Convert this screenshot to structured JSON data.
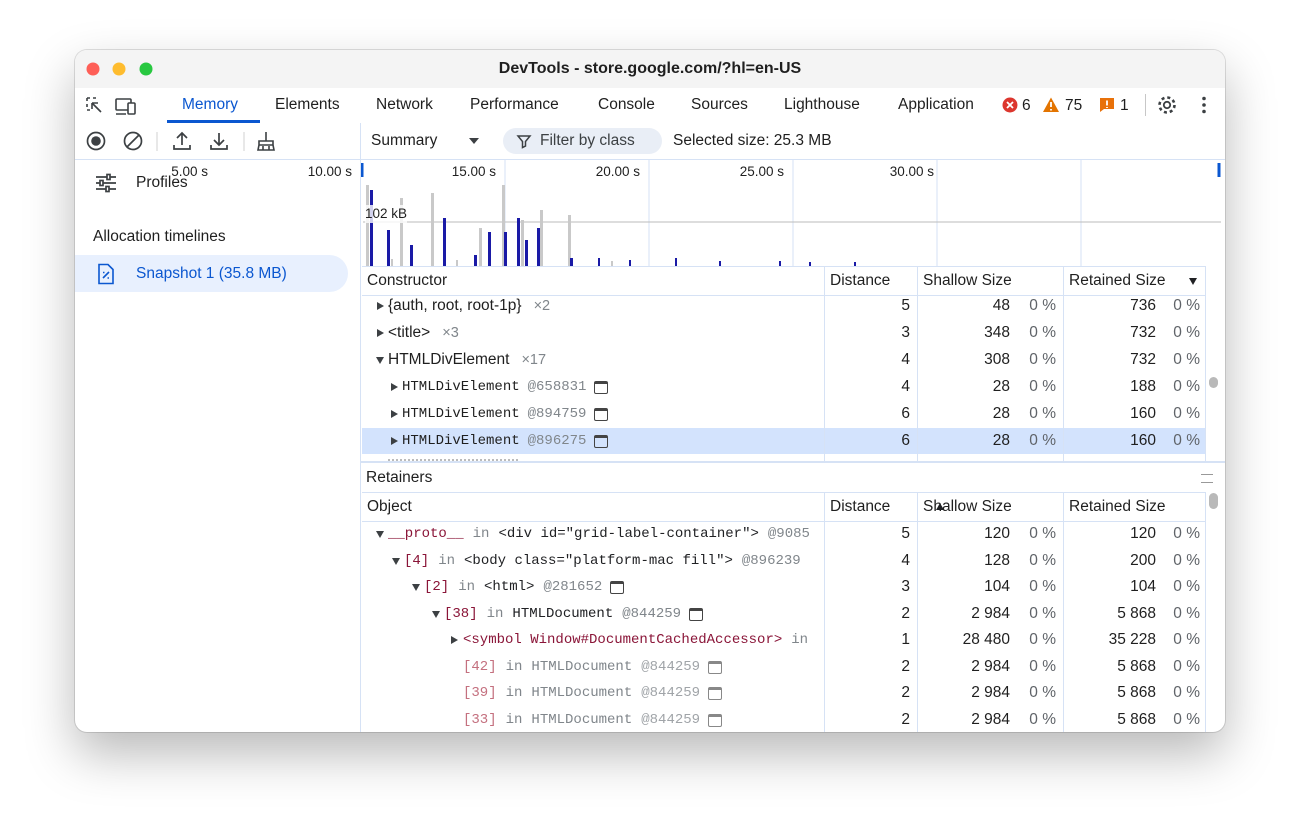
{
  "window": {
    "title": "DevTools - store.google.com/?hl=en-US"
  },
  "tabs": [
    "Memory",
    "Elements",
    "Network",
    "Performance",
    "Console",
    "Sources",
    "Lighthouse",
    "Application"
  ],
  "status": {
    "errors": 6,
    "warnings": 75,
    "issues": 1
  },
  "toolbar": {
    "view": "Summary",
    "filter": "Filter by class",
    "selected_size": "Selected size: 25.3 MB"
  },
  "sidebar": {
    "heading": "Profiles",
    "group": "Allocation timelines",
    "snapshot": "Snapshot 1 (35.8 MB)"
  },
  "timeline": {
    "ticks": [
      "5.00 s",
      "10.00 s",
      "15.00 s",
      "20.00 s",
      "25.00 s",
      "30.00 s"
    ],
    "scale_label": "102 kB"
  },
  "constructors": {
    "columns": [
      "Constructor",
      "Distance",
      "Shallow Size",
      "Retained Size"
    ],
    "rows": [
      {
        "name": "{auth, root, root-1p}",
        "count": "×2",
        "distance": 5,
        "shallow": 48,
        "shallow_pct": "0 %",
        "retained": 736,
        "retained_pct": "0 %"
      },
      {
        "name": "<title>",
        "count": "×3",
        "distance": 3,
        "shallow": 348,
        "shallow_pct": "0 %",
        "retained": 732,
        "retained_pct": "0 %"
      },
      {
        "name": "HTMLDivElement",
        "count": "×17",
        "distance": 4,
        "shallow": 308,
        "shallow_pct": "0 %",
        "retained": 732,
        "retained_pct": "0 %"
      },
      {
        "name": "HTMLDivElement",
        "id": "@658831",
        "distance": 4,
        "shallow": 28,
        "shallow_pct": "0 %",
        "retained": 188,
        "retained_pct": "0 %"
      },
      {
        "name": "HTMLDivElement",
        "id": "@894759",
        "distance": 6,
        "shallow": 28,
        "shallow_pct": "0 %",
        "retained": 160,
        "retained_pct": "0 %"
      },
      {
        "name": "HTMLDivElement",
        "id": "@896275",
        "distance": 6,
        "shallow": 28,
        "shallow_pct": "0 %",
        "retained": 160,
        "retained_pct": "0 %"
      }
    ]
  },
  "retainers": {
    "title": "Retainers",
    "columns": [
      "Object",
      "Distance",
      "Shallow Size",
      "Retained Size"
    ],
    "rows": [
      {
        "key": "__proto__",
        "in": "in",
        "object": "<div id=\"grid-label-container\">",
        "id": "@9085",
        "distance": 5,
        "shallow": 120,
        "shallow_pct": "0 %",
        "retained": 120,
        "retained_pct": "0 %"
      },
      {
        "key": "[4]",
        "in": "in",
        "object": "<body class=\"platform-mac fill\">",
        "id": "@896239",
        "distance": 4,
        "shallow": 128,
        "shallow_pct": "0 %",
        "retained": 200,
        "retained_pct": "0 %"
      },
      {
        "key": "[2]",
        "in": "in",
        "object": "<html>",
        "id": "@281652",
        "distance": 3,
        "shallow": 104,
        "shallow_pct": "0 %",
        "retained": 104,
        "retained_pct": "0 %"
      },
      {
        "key": "[38]",
        "in": "in",
        "object": "HTMLDocument",
        "id": "@844259",
        "distance": 2,
        "shallow": "2 984",
        "shallow_pct": "0 %",
        "retained": "5 868",
        "retained_pct": "0 %"
      },
      {
        "key": "<symbol Window#DocumentCachedAccessor>",
        "in": "in",
        "distance": 1,
        "shallow": "28 480",
        "shallow_pct": "0 %",
        "retained": "35 228",
        "retained_pct": "0 %"
      },
      {
        "key": "[42]",
        "in": "in",
        "object": "HTMLDocument",
        "id": "@844259",
        "distance": 2,
        "shallow": "2 984",
        "shallow_pct": "0 %",
        "retained": "5 868",
        "retained_pct": "0 %"
      },
      {
        "key": "[39]",
        "in": "in",
        "object": "HTMLDocument",
        "id": "@844259",
        "distance": 2,
        "shallow": "2 984",
        "shallow_pct": "0 %",
        "retained": "5 868",
        "retained_pct": "0 %"
      },
      {
        "key": "[33]",
        "in": "in",
        "object": "HTMLDocument",
        "id": "@844259",
        "distance": 2,
        "shallow": "2 984",
        "shallow_pct": "0 %",
        "retained": "5 868",
        "retained_pct": "0 %"
      }
    ]
  }
}
